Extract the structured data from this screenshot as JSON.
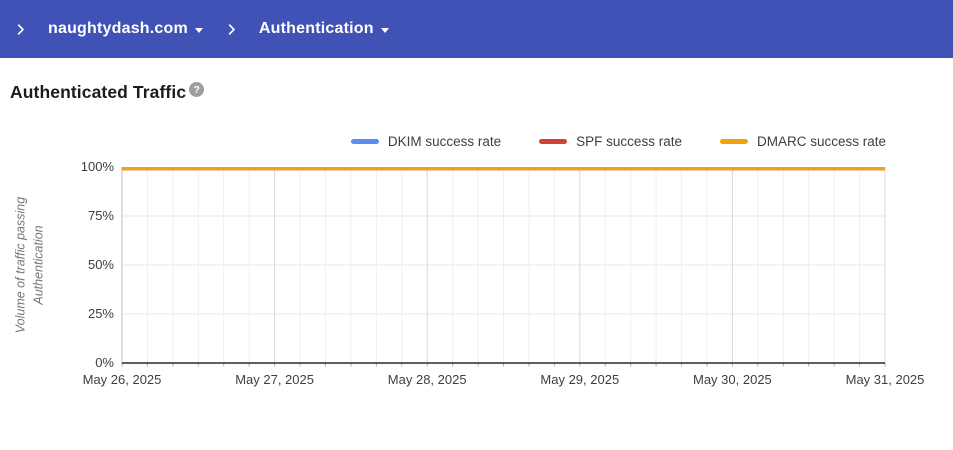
{
  "nav": {
    "domain": "naughtydash.com",
    "section": "Authentication"
  },
  "page": {
    "title": "Authenticated Traffic",
    "help": "?"
  },
  "chart_data": {
    "type": "line",
    "title": "Authenticated Traffic",
    "ylabel": "Volume of traffic passing Authentication",
    "xlabel": "",
    "ylim": [
      0,
      100
    ],
    "yticks": [
      "0%",
      "25%",
      "50%",
      "75%",
      "100%"
    ],
    "x_tick_labels": [
      "May 26, 2025",
      "May 27, 2025",
      "May 28, 2025",
      "May 29, 2025",
      "May 30, 2025",
      "May 31, 2025"
    ],
    "x_minor_divisions_per_interval": 6,
    "grid": true,
    "legend_position": "top-right",
    "series": [
      {
        "name": "DKIM success rate",
        "color": "#5B8DEF",
        "values": [
          100,
          100,
          100,
          100,
          100,
          100
        ]
      },
      {
        "name": "SPF success rate",
        "color": "#CE4334",
        "values": [
          100,
          100,
          100,
          100,
          100,
          100
        ]
      },
      {
        "name": "DMARC success rate",
        "color": "#EFA40E",
        "values": [
          100,
          100,
          100,
          100,
          100,
          100
        ]
      }
    ]
  },
  "theme": {
    "header_bg": "#4052B5",
    "header_text": "#FFFFFF",
    "help_bg": "#9E9E9E",
    "axis_text": "#3C4043",
    "ylabel_text": "#757575",
    "grid_minor": "#EFEFEF",
    "grid_major": "#D9D9D9",
    "grid_horizontal": "#E7E7E7",
    "plot_left_border": "#BDBDBD",
    "axis_line": "#2B2B2B",
    "tick_mark": "#ADADAD"
  }
}
